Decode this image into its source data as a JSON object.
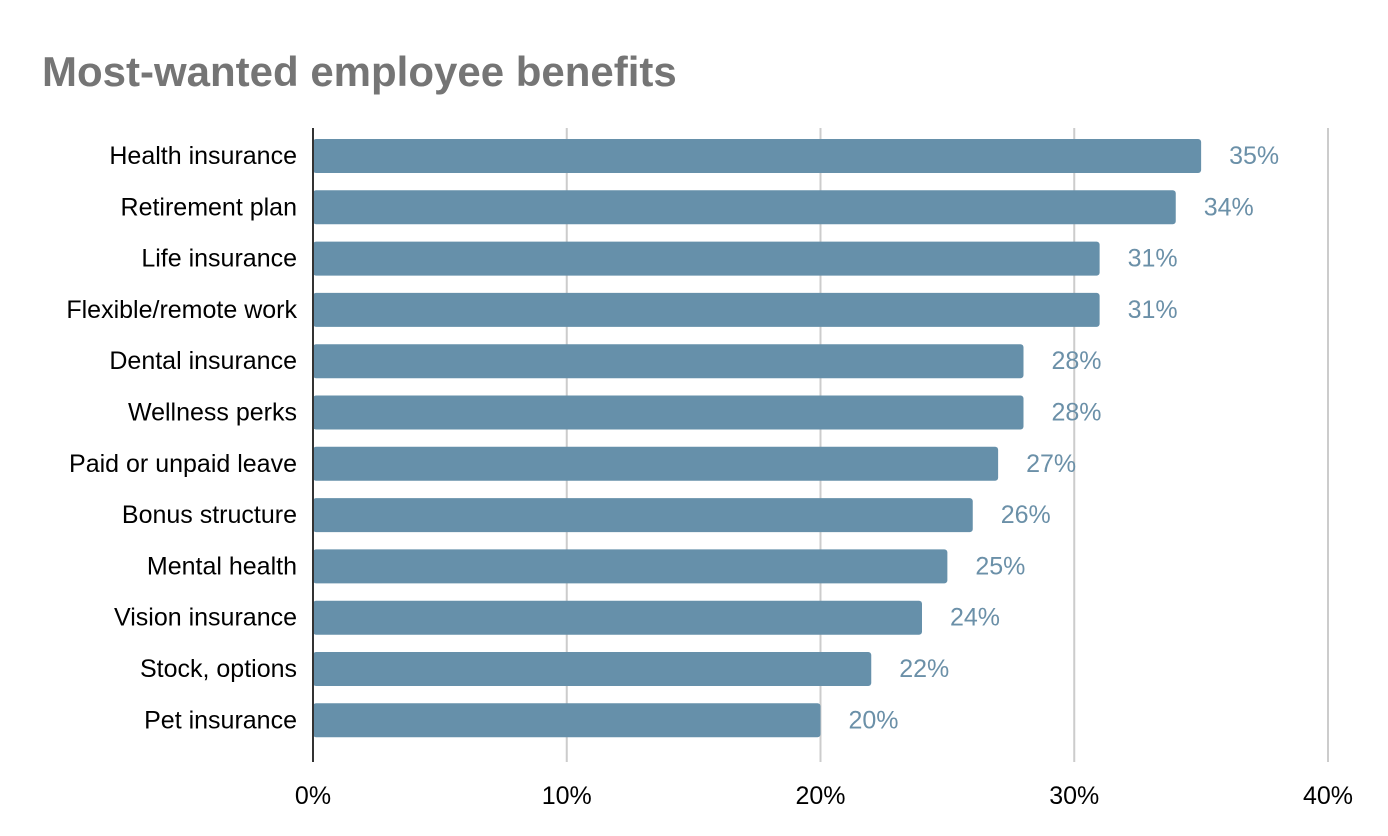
{
  "chart_data": {
    "type": "bar",
    "orientation": "horizontal",
    "title": "Most-wanted employee benefits",
    "xlabel": "",
    "ylabel": "",
    "categories": [
      "Health insurance",
      "Retirement plan",
      "Life insurance",
      "Flexible/remote work",
      "Dental insurance",
      "Wellness perks",
      "Paid or unpaid leave",
      "Bonus structure",
      "Mental health",
      "Vision insurance",
      "Stock, options",
      "Pet insurance"
    ],
    "values": [
      35,
      34,
      31,
      31,
      28,
      28,
      27,
      26,
      25,
      24,
      22,
      20
    ],
    "data_labels": [
      "35%",
      "34%",
      "31%",
      "31%",
      "28%",
      "28%",
      "27%",
      "26%",
      "25%",
      "24%",
      "22%",
      "20%"
    ],
    "xlim": [
      0,
      40
    ],
    "x_ticks": [
      0,
      10,
      20,
      30,
      40
    ],
    "x_tick_labels": [
      "0%",
      "10%",
      "20%",
      "30%",
      "40%"
    ],
    "grid": "vertical",
    "legend": "none",
    "bar_color": "#6690aa",
    "data_label_color": "#6b90a8",
    "gridline_color": "#cccccc",
    "title_color": "#757575"
  }
}
